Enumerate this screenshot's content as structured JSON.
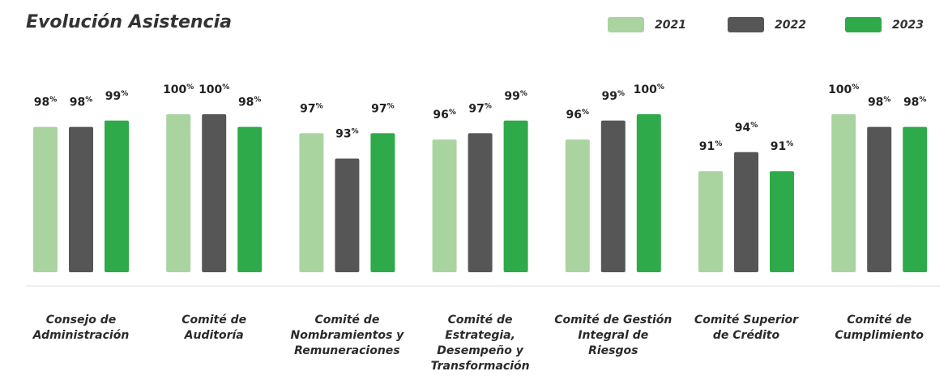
{
  "chart_data": {
    "type": "bar",
    "title": "Evolución Asistencia",
    "categories": [
      "Consejo de Administración",
      "Comité de Auditoría",
      "Comité de Nombramientos y Remuneraciones",
      "Comité de Estrategia, Desempeño y Transformación",
      "Comité de Gestión Integral de Riesgos",
      "Comité Superior de Crédito",
      "Comité de Cumplimiento"
    ],
    "series": [
      {
        "name": "2021",
        "color": "#a9d4a0",
        "values": [
          98,
          100,
          97,
          96,
          96,
          91,
          100
        ],
        "value_labels": [
          "98%",
          "100%",
          "97%",
          "96%",
          "96%",
          "91%",
          "100%"
        ]
      },
      {
        "name": "2022",
        "color": "#565656",
        "values": [
          98,
          100,
          93,
          97,
          99,
          94,
          98
        ],
        "value_labels": [
          "98%",
          "100%",
          "93%",
          "97%",
          "99%",
          "94%",
          "98%"
        ]
      },
      {
        "name": "2023",
        "color": "#2eaa4a",
        "values": [
          99,
          98,
          97,
          99,
          100,
          91,
          98
        ],
        "value_labels": [
          "99%",
          "98%",
          "97%",
          "99%",
          "100%",
          "91%",
          "98%"
        ]
      }
    ],
    "ylim": [
      75,
      100
    ],
    "legend": "top-right"
  }
}
